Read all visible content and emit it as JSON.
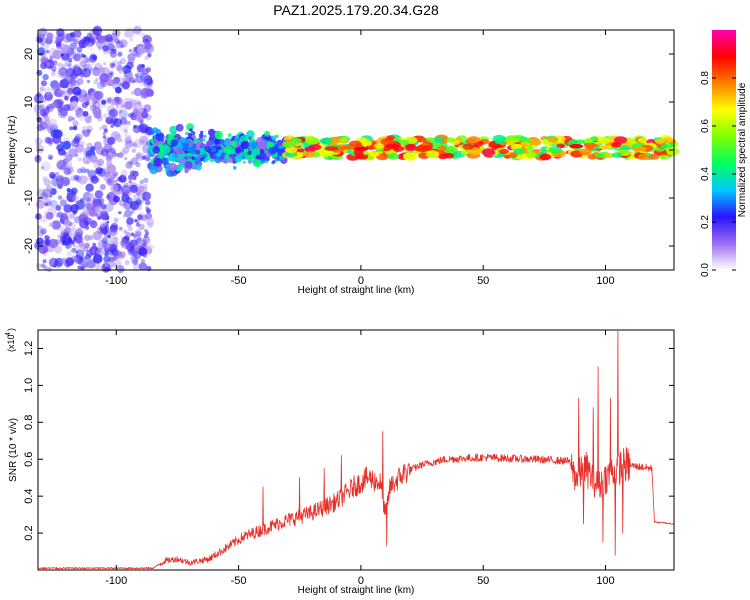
{
  "figure": {
    "title": "PAZ1.2025.179.20.34.G28"
  },
  "chart_data": [
    {
      "type": "heatmap",
      "xlabel": "Height of straight line (km)",
      "ylabel": "Frequency (Hz)",
      "xlim": [
        -132,
        128
      ],
      "ylim": [
        -25,
        25
      ],
      "x_ticks": [
        -100,
        -50,
        0,
        50,
        100
      ],
      "y_ticks": [
        -20,
        -10,
        0,
        10,
        20
      ],
      "colorbar": {
        "label": "Normalized spectral amplitude",
        "range": [
          0,
          1
        ],
        "ticks": [
          0.0,
          0.2,
          0.4,
          0.6,
          0.8
        ],
        "colors": [
          "#ffffff",
          "#9a6cf0",
          "#2a14ff",
          "#00c8ff",
          "#00ff60",
          "#7fff00",
          "#ffff00",
          "#ff7f00",
          "#ff0000",
          "#ff00b0"
        ]
      },
      "regions": [
        {
          "x_range": [
            -132,
            -86
          ],
          "freq_spread": [
            -25,
            25
          ],
          "amplitude": [
            0.05,
            0.25
          ],
          "note_color": "purple noise"
        },
        {
          "x_range": [
            -86,
            -30
          ],
          "freq_spread": [
            -6,
            6
          ],
          "amplitude": [
            0.1,
            0.45
          ]
        },
        {
          "x_range": [
            -30,
            128
          ],
          "freq_spread": [
            -2,
            2
          ],
          "amplitude": [
            0.4,
            0.95
          ],
          "center_freq": 0.5
        }
      ],
      "hot_spots": [
        {
          "x": -12,
          "y": 0.3,
          "amp": 0.85
        },
        {
          "x": -5,
          "y": 0.5,
          "amp": 0.8
        },
        {
          "x": 0,
          "y": 0.2,
          "amp": 0.9
        },
        {
          "x": 13,
          "y": 0.8,
          "amp": 0.92
        },
        {
          "x": 25,
          "y": 0.1,
          "amp": 0.85
        },
        {
          "x": 88,
          "y": 0.8,
          "amp": 0.9
        },
        {
          "x": 94,
          "y": 1.0,
          "amp": 0.8
        },
        {
          "x": 100,
          "y": 0.6,
          "amp": 0.7
        },
        {
          "x": 114,
          "y": 0.2,
          "amp": 0.75
        }
      ]
    },
    {
      "type": "line",
      "xlabel": "Height of straight line (km)",
      "ylabel": "SNR (10 * v/v)",
      "scale_label": "(x10",
      "scale_exponent": "4",
      "xlim": [
        -132,
        128
      ],
      "ylim": [
        0,
        1.3
      ],
      "x_ticks": [
        -100,
        -50,
        0,
        50,
        100
      ],
      "y_ticks": [
        0.2,
        0.4,
        0.6,
        0.8,
        1.0,
        1.2
      ],
      "color": "#e8302a",
      "noise_amplitude": 0.06,
      "envelope": [
        [
          -132,
          0.01
        ],
        [
          -85,
          0.01
        ],
        [
          -80,
          0.05
        ],
        [
          -75,
          0.06
        ],
        [
          -70,
          0.04
        ],
        [
          -62,
          0.06
        ],
        [
          -55,
          0.12
        ],
        [
          -48,
          0.18
        ],
        [
          -40,
          0.22
        ],
        [
          -30,
          0.27
        ],
        [
          -20,
          0.31
        ],
        [
          -10,
          0.37
        ],
        [
          -3,
          0.45
        ],
        [
          3,
          0.5
        ],
        [
          8,
          0.47
        ],
        [
          10,
          0.3
        ],
        [
          12,
          0.45
        ],
        [
          18,
          0.53
        ],
        [
          25,
          0.57
        ],
        [
          35,
          0.6
        ],
        [
          50,
          0.61
        ],
        [
          70,
          0.6
        ],
        [
          85,
          0.59
        ],
        [
          88,
          0.5
        ],
        [
          92,
          0.55
        ],
        [
          97,
          0.45
        ],
        [
          100,
          0.5
        ],
        [
          104,
          0.55
        ],
        [
          108,
          0.57
        ],
        [
          119,
          0.55
        ],
        [
          120,
          0.26
        ],
        [
          128,
          0.25
        ]
      ],
      "spikes": [
        {
          "x": 9,
          "y": 0.75
        },
        {
          "x": 10.5,
          "y": 0.13
        },
        {
          "x": 89,
          "y": 0.93
        },
        {
          "x": 91,
          "y": 0.25
        },
        {
          "x": 95,
          "y": 0.88
        },
        {
          "x": 97,
          "y": 1.1
        },
        {
          "x": 99,
          "y": 0.15
        },
        {
          "x": 102,
          "y": 0.93
        },
        {
          "x": 104,
          "y": 0.08
        },
        {
          "x": 105,
          "y": 1.3
        },
        {
          "x": 107,
          "y": 0.2
        },
        {
          "x": -40,
          "y": 0.45
        },
        {
          "x": -25,
          "y": 0.5
        },
        {
          "x": -15,
          "y": 0.55
        },
        {
          "x": -8,
          "y": 0.62
        }
      ]
    }
  ]
}
